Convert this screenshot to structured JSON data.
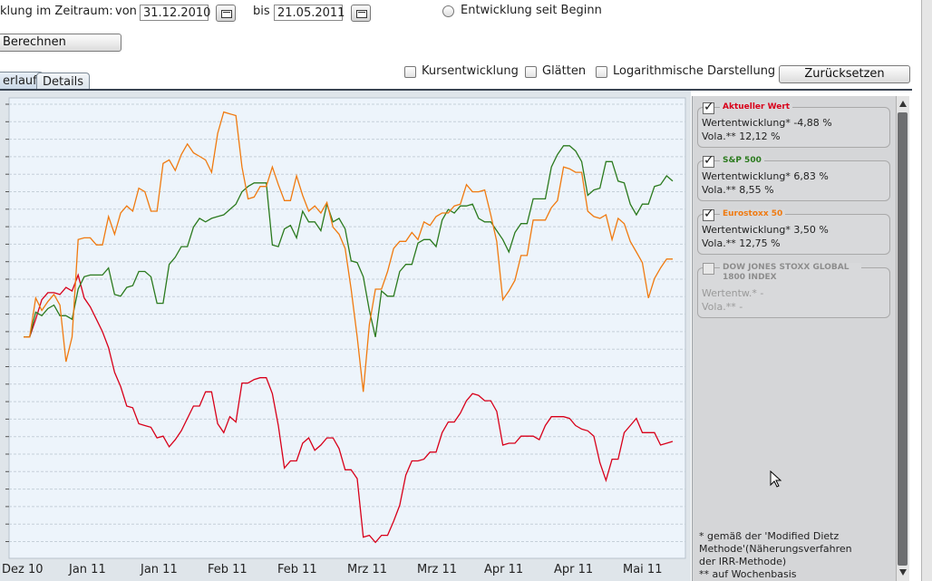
{
  "period": {
    "label": "klung im Zeitraum:",
    "from_label": "von",
    "from_value": "31.12.2010",
    "to_label": "bis",
    "to_value": "21.05.2011",
    "since_start_label": "Entwicklung seit Beginn"
  },
  "calculate_button": "Berechnen",
  "tabs": [
    {
      "label": "erlauf"
    },
    {
      "label": "Details"
    }
  ],
  "options": {
    "kursentwicklung": "Kursentwicklung",
    "glaetten": "Glätten",
    "logarithmisch": "Logarithmische Darstellung",
    "reset": "Zurücksetzen"
  },
  "legend": [
    {
      "name": "Aktueller Wert",
      "color": "#d8001a",
      "checked": true,
      "line1": "Wertentwicklung* -4,88 %",
      "line2": "Vola.** 12,12 %"
    },
    {
      "name": "S&P 500",
      "color": "#2b7a1e",
      "checked": true,
      "line1": "Wertentwicklung* 6,83 %",
      "line2": "Vola.** 8,55 %"
    },
    {
      "name": "Eurostoxx 50",
      "color": "#f07a10",
      "checked": true,
      "line1": "Wertentwicklung* 3,50 %",
      "line2": "Vola.** 12,75 %"
    },
    {
      "name": "DOW JONES STOXX GLOBAL 1800 INDEX",
      "color": "#8d8d8d",
      "checked": false,
      "line1": "Wertentw.* -",
      "line2": "Vola.** -"
    }
  ],
  "footnote": {
    "line1": "* gemäß der 'Modified Dietz",
    "line2": "Methode'(Näherungsverfahren",
    "line3": "der IRR-Methode)",
    "line4": "** auf Wochenbasis"
  },
  "chart_data": {
    "type": "line",
    "x_labels": [
      "Dez 10",
      "Jan 11",
      "Jan 11",
      "Feb 11",
      "Feb 11",
      "Mrz 11",
      "Mrz 11",
      "Apr 11",
      "Apr 11",
      "Mai 11"
    ],
    "series": [
      {
        "name": "Aktueller Wert",
        "color": "#d8001a",
        "values": [
          0.0,
          0.0,
          1.0,
          2.1,
          2.5,
          2.5,
          2.4,
          2.8,
          2.6,
          3.5,
          2.2,
          1.7,
          1.0,
          0.3,
          -0.6,
          -2.0,
          -2.8,
          -3.9,
          -4.0,
          -4.9,
          -5.0,
          -5.1,
          -5.7,
          -5.6,
          -6.2,
          -5.8,
          -5.3,
          -4.6,
          -3.9,
          -3.9,
          -3.1,
          -3.1,
          -4.9,
          -5.4,
          -4.5,
          -4.8,
          -2.6,
          -2.6,
          -2.4,
          -2.3,
          -2.3,
          -3.2,
          -5.0,
          -7.4,
          -7.0,
          -7.0,
          -6.0,
          -5.7,
          -6.4,
          -6.1,
          -5.7,
          -5.7,
          -6.3,
          -7.5,
          -7.5,
          -8.0,
          -11.3,
          -11.2,
          -11.6,
          -11.2,
          -11.2,
          -10.4,
          -9.5,
          -7.8,
          -7.0,
          -7.0,
          -6.9,
          -6.5,
          -6.5,
          -5.4,
          -4.8,
          -4.8,
          -4.3,
          -3.6,
          -3.2,
          -3.3,
          -3.6,
          -3.6,
          -4.2,
          -6.1,
          -6.0,
          -6.0,
          -5.6,
          -5.6,
          -5.6,
          -5.8,
          -5.0,
          -4.5,
          -4.5,
          -4.5,
          -4.6,
          -5.0,
          -5.2,
          -5.3,
          -5.6,
          -7.1,
          -8.1,
          -6.9,
          -6.9,
          -5.4,
          -5.0,
          -4.6,
          -5.4,
          -5.4,
          -5.4,
          -6.1,
          -6.0,
          -5.9
        ]
      },
      {
        "name": "S&P 500",
        "color": "#2b7a1e",
        "values": [
          0.0,
          0.0,
          1.4,
          1.2,
          1.6,
          1.8,
          1.2,
          1.2,
          1.0,
          2.7,
          3.4,
          3.5,
          3.5,
          3.5,
          3.9,
          2.4,
          2.3,
          2.8,
          2.9,
          3.7,
          3.7,
          3.4,
          1.9,
          1.9,
          4.1,
          4.5,
          5.1,
          5.1,
          6.2,
          6.7,
          6.5,
          6.7,
          6.8,
          6.9,
          7.2,
          7.5,
          8.2,
          8.5,
          8.7,
          8.7,
          8.7,
          5.2,
          5.1,
          6.1,
          6.3,
          5.6,
          7.1,
          6.5,
          6.5,
          6.0,
          7.5,
          6.5,
          6.7,
          6.1,
          4.3,
          4.2,
          3.4,
          1.5,
          0.0,
          2.6,
          2.3,
          2.3,
          3.7,
          4.1,
          4.1,
          5.3,
          5.5,
          5.5,
          5.1,
          6.6,
          7.2,
          7.0,
          7.4,
          7.4,
          7.5,
          6.7,
          6.5,
          6.5,
          6.0,
          5.5,
          4.8,
          5.9,
          6.4,
          6.4,
          7.8,
          7.8,
          7.8,
          9.6,
          10.3,
          10.8,
          10.8,
          10.5,
          9.9,
          8.0,
          8.3,
          8.4,
          9.9,
          9.9,
          8.8,
          8.7,
          7.5,
          6.9,
          7.5,
          7.5,
          8.5,
          8.6,
          9.1,
          8.8
        ]
      },
      {
        "name": "Eurostoxx 50",
        "color": "#f07a10",
        "values": [
          0.0,
          0.0,
          2.2,
          1.5,
          2.0,
          2.4,
          1.8,
          -1.4,
          0.0,
          5.5,
          5.6,
          5.6,
          5.2,
          5.2,
          6.8,
          5.8,
          7.0,
          7.4,
          7.1,
          8.4,
          8.2,
          7.1,
          7.1,
          9.8,
          10.0,
          9.4,
          10.3,
          10.9,
          10.4,
          10.2,
          10.0,
          9.3,
          11.5,
          12.7,
          12.6,
          12.5,
          9.6,
          7.8,
          7.9,
          8.5,
          8.5,
          9.6,
          8.6,
          7.7,
          7.7,
          9.1,
          8.0,
          7.1,
          7.4,
          7.0,
          7.6,
          6.2,
          5.8,
          5.0,
          2.7,
          0.0,
          -3.1,
          0.7,
          2.7,
          2.7,
          3.7,
          5.0,
          5.4,
          5.4,
          5.9,
          5.5,
          6.5,
          6.3,
          6.8,
          7.0,
          7.0,
          7.4,
          7.5,
          8.6,
          8.2,
          8.2,
          8.3,
          6.9,
          5.4,
          2.1,
          2.6,
          3.2,
          4.6,
          4.6,
          6.6,
          6.6,
          6.6,
          7.3,
          7.7,
          9.6,
          9.5,
          9.3,
          9.3,
          7.1,
          6.8,
          6.7,
          6.9,
          5.5,
          6.7,
          6.4,
          5.4,
          4.8,
          4.2,
          2.2,
          3.3,
          3.9,
          4.4,
          4.4
        ]
      }
    ],
    "ylim": [
      -12.5,
      13.5
    ],
    "grid": true
  }
}
